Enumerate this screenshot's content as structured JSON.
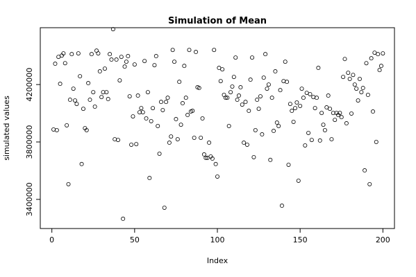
{
  "chart_data": {
    "type": "scatter",
    "title": "Simulation of Mean",
    "x_label": "Index",
    "y_label": "simulated values",
    "color": "#000000",
    "x": [
      1,
      2,
      3,
      4,
      5,
      6,
      7,
      8,
      9,
      10,
      11,
      12,
      13,
      14,
      15,
      16,
      17,
      18,
      19,
      20,
      21,
      22,
      23,
      24,
      25,
      26,
      27,
      28,
      29,
      30,
      31,
      32,
      33,
      34,
      35,
      36,
      37,
      38,
      39,
      40,
      41,
      42,
      43,
      44,
      45,
      46,
      47,
      48,
      49,
      50,
      51,
      52,
      53,
      54,
      55,
      56,
      57,
      58,
      59,
      60,
      61,
      62,
      63,
      64,
      65,
      66,
      67,
      68,
      69,
      70,
      71,
      72,
      73,
      74,
      75,
      76,
      77,
      78,
      79,
      80,
      81,
      82,
      83,
      84,
      85,
      86,
      87,
      88,
      89,
      90,
      91,
      92,
      93,
      94,
      95,
      96,
      97,
      98,
      99,
      100,
      101,
      102,
      103,
      104,
      105,
      106,
      107,
      108,
      109,
      110,
      111,
      112,
      113,
      114,
      115,
      116,
      117,
      118,
      119,
      120,
      121,
      122,
      123,
      124,
      125,
      126,
      127,
      128,
      129,
      130,
      131,
      132,
      133,
      134,
      135,
      136,
      137,
      138,
      139,
      140,
      141,
      142,
      143,
      144,
      145,
      146,
      147,
      148,
      149,
      150,
      151,
      152,
      153,
      154,
      155,
      156,
      157,
      158,
      159,
      160,
      161,
      162,
      163,
      164,
      165,
      166,
      167,
      168,
      169,
      170,
      171,
      172,
      173,
      174,
      175,
      176,
      177,
      178,
      179,
      180,
      181,
      182,
      183,
      184,
      185,
      186,
      187,
      188,
      189,
      190,
      191,
      192,
      193,
      194,
      195,
      196,
      197,
      198,
      199,
      200
    ],
    "values": [
      3887000,
      4345000,
      3882000,
      4393000,
      4205000,
      4402000,
      4417000,
      4349000,
      3916000,
      3506000,
      4094000,
      4412000,
      4171000,
      4089000,
      4065000,
      4417000,
      4258000,
      3646000,
      4031000,
      3896000,
      3882000,
      4210000,
      4094000,
      4412000,
      4147000,
      4046000,
      4436000,
      4417000,
      4292000,
      4113000,
      4147000,
      4311000,
      4147000,
      4099000,
      4412000,
      4374000,
      4586000,
      3819000,
      4374000,
      3814000,
      4229000,
      4393000,
      3265000,
      4325000,
      4359000,
      4398000,
      4118000,
      3781000,
      3978000,
      4340000,
      3785000,
      4123000,
      4007000,
      4036000,
      4007000,
      4364000,
      3964000,
      4147000,
      3549000,
      3945000,
      4036000,
      4335000,
      4398000,
      3911000,
      3718000,
      4079000,
      4022000,
      3342000,
      4079000,
      4108000,
      3795000,
      3838000,
      4441000,
      4359000,
      3959000,
      3819000,
      4219000,
      3920000,
      4070000,
      4330000,
      4108000,
      3988000,
      4441000,
      4012000,
      4017000,
      3829000,
      4427000,
      4181000,
      4176000,
      3829000,
      3964000,
      3713000,
      3689000,
      3689000,
      3795000,
      3699000,
      3684000,
      4441000,
      3646000,
      3559000,
      4316000,
      4224000,
      4306000,
      4128000,
      4108000,
      4108000,
      3911000,
      4147000,
      4186000,
      4253000,
      4388000,
      4094000,
      4123000,
      4181000,
      4060000,
      3795000,
      4079000,
      3781000,
      4017000,
      4234000,
      4388000,
      3694000,
      3882000,
      4094000,
      4031000,
      4118000,
      3853000,
      4248000,
      4412000,
      4171000,
      4200000,
      3675000,
      4108000,
      3877000,
      4292000,
      3935000,
      3911000,
      4161000,
      3356000,
      4224000,
      4359000,
      4219000,
      3641000,
      4065000,
      4017000,
      3940000,
      4036000,
      4075000,
      3530000,
      4051000,
      4171000,
      4108000,
      3776000,
      4142000,
      3863000,
      4133000,
      3814000,
      4113000,
      4036000,
      4108000,
      4316000,
      3810000,
      4002000,
      3920000,
      3882000,
      4041000,
      4123000,
      4031000,
      3819000,
      4002000,
      3954000,
      4002000,
      3988000,
      4002000,
      3973000,
      4253000,
      4378000,
      3930000,
      4282000,
      4239000,
      3998000,
      4267000,
      4200000,
      4171000,
      4089000,
      4239000,
      4147000,
      4176000,
      3602000,
      4349000,
      4128000,
      3506000,
      4383000,
      4012000,
      4422000,
      3800000,
      4412000,
      4301000,
      4330000,
      4417000
    ],
    "xlim": [
      -7,
      207
    ],
    "xticks": [
      0,
      50,
      100,
      150,
      200
    ],
    "ylim": [
      3197000,
      4596000
    ],
    "yticks": [
      3400000,
      3800000,
      4200000
    ]
  }
}
